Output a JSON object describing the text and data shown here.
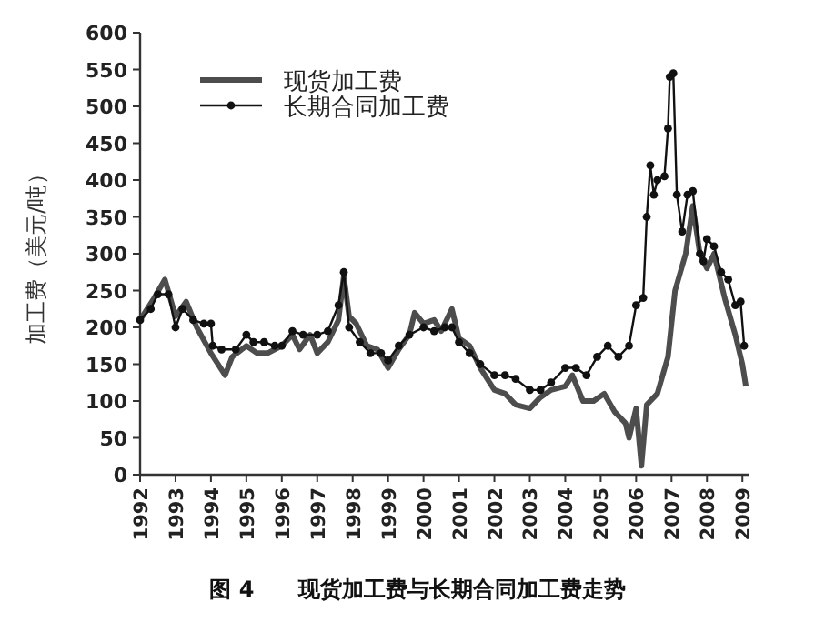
{
  "chart_data": {
    "type": "line",
    "title": "图 4　　现货加工费与长期合同加工费走势",
    "ylabel": "加工费（美元/吨）",
    "xlim": [
      1992,
      2009.2
    ],
    "xticks": [
      1992,
      1993,
      1994,
      1995,
      1996,
      1997,
      1998,
      1999,
      2000,
      2001,
      2002,
      2003,
      2004,
      2005,
      2006,
      2007,
      2008,
      2009
    ],
    "ylim": [
      0,
      600
    ],
    "yticks": [
      0,
      50,
      100,
      150,
      200,
      250,
      300,
      350,
      400,
      450,
      500,
      550,
      600
    ],
    "grid": false,
    "legend": "top",
    "series": [
      {
        "name": "现货加工费",
        "color": "#4d4d4d",
        "marker": "none",
        "x": [
          1992.0,
          1992.4,
          1992.7,
          1993.0,
          1993.3,
          1993.6,
          1994.0,
          1994.4,
          1994.6,
          1995.0,
          1995.3,
          1995.6,
          1996.0,
          1996.3,
          1996.5,
          1996.8,
          1997.0,
          1997.3,
          1997.6,
          1997.75,
          1997.9,
          1998.1,
          1998.4,
          1998.7,
          1999.0,
          1999.3,
          1999.6,
          1999.75,
          2000.0,
          2000.3,
          2000.5,
          2000.8,
          2001.0,
          2001.3,
          2001.6,
          2002.0,
          2002.3,
          2002.6,
          2003.0,
          2003.3,
          2003.6,
          2004.0,
          2004.2,
          2004.5,
          2004.8,
          2005.1,
          2005.4,
          2005.7,
          2005.8,
          2006.0,
          2006.15,
          2006.3,
          2006.6,
          2006.9,
          2007.1,
          2007.4,
          2007.6,
          2007.8,
          2008.0,
          2008.2,
          2008.5,
          2008.8,
          2009.0,
          2009.1
        ],
        "values": [
          210,
          240,
          265,
          215,
          235,
          200,
          165,
          135,
          160,
          175,
          165,
          165,
          175,
          190,
          170,
          190,
          165,
          180,
          210,
          270,
          215,
          205,
          175,
          170,
          145,
          170,
          190,
          220,
          205,
          210,
          195,
          225,
          185,
          175,
          145,
          115,
          110,
          95,
          90,
          105,
          115,
          120,
          135,
          100,
          100,
          110,
          85,
          70,
          50,
          90,
          12,
          95,
          110,
          160,
          250,
          300,
          365,
          300,
          280,
          300,
          240,
          190,
          150,
          120
        ]
      },
      {
        "name": "长期合同加工费",
        "color": "#111111",
        "marker": "circle",
        "x": [
          1992.0,
          1992.3,
          1992.5,
          1992.8,
          1993.0,
          1993.2,
          1993.5,
          1993.8,
          1994.0,
          1994.05,
          1994.3,
          1994.7,
          1995.0,
          1995.2,
          1995.5,
          1995.8,
          1996.0,
          1996.3,
          1996.6,
          1997.0,
          1997.3,
          1997.6,
          1997.75,
          1997.9,
          1998.2,
          1998.5,
          1998.8,
          1999.0,
          1999.3,
          1999.6,
          2000.0,
          2000.3,
          2000.6,
          2000.8,
          2001.0,
          2001.3,
          2001.6,
          2002.0,
          2002.3,
          2002.6,
          2003.0,
          2003.3,
          2003.6,
          2004.0,
          2004.3,
          2004.6,
          2004.9,
          2005.2,
          2005.5,
          2005.8,
          2006.0,
          2006.2,
          2006.3,
          2006.4,
          2006.5,
          2006.6,
          2006.8,
          2006.9,
          2006.95,
          2007.05,
          2007.15,
          2007.3,
          2007.45,
          2007.6,
          2007.8,
          2007.9,
          2008.0,
          2008.2,
          2008.4,
          2008.6,
          2008.8,
          2008.95,
          2009.05
        ],
        "values": [
          210,
          225,
          245,
          245,
          200,
          225,
          210,
          205,
          205,
          175,
          170,
          170,
          190,
          180,
          180,
          175,
          175,
          195,
          190,
          190,
          195,
          230,
          275,
          200,
          180,
          165,
          165,
          155,
          175,
          190,
          200,
          195,
          200,
          200,
          180,
          165,
          150,
          135,
          135,
          130,
          115,
          115,
          125,
          145,
          145,
          135,
          160,
          175,
          160,
          175,
          230,
          240,
          350,
          420,
          380,
          400,
          405,
          470,
          540,
          545,
          380,
          330,
          380,
          385,
          300,
          290,
          320,
          310,
          275,
          265,
          230,
          235,
          175
        ]
      }
    ]
  }
}
